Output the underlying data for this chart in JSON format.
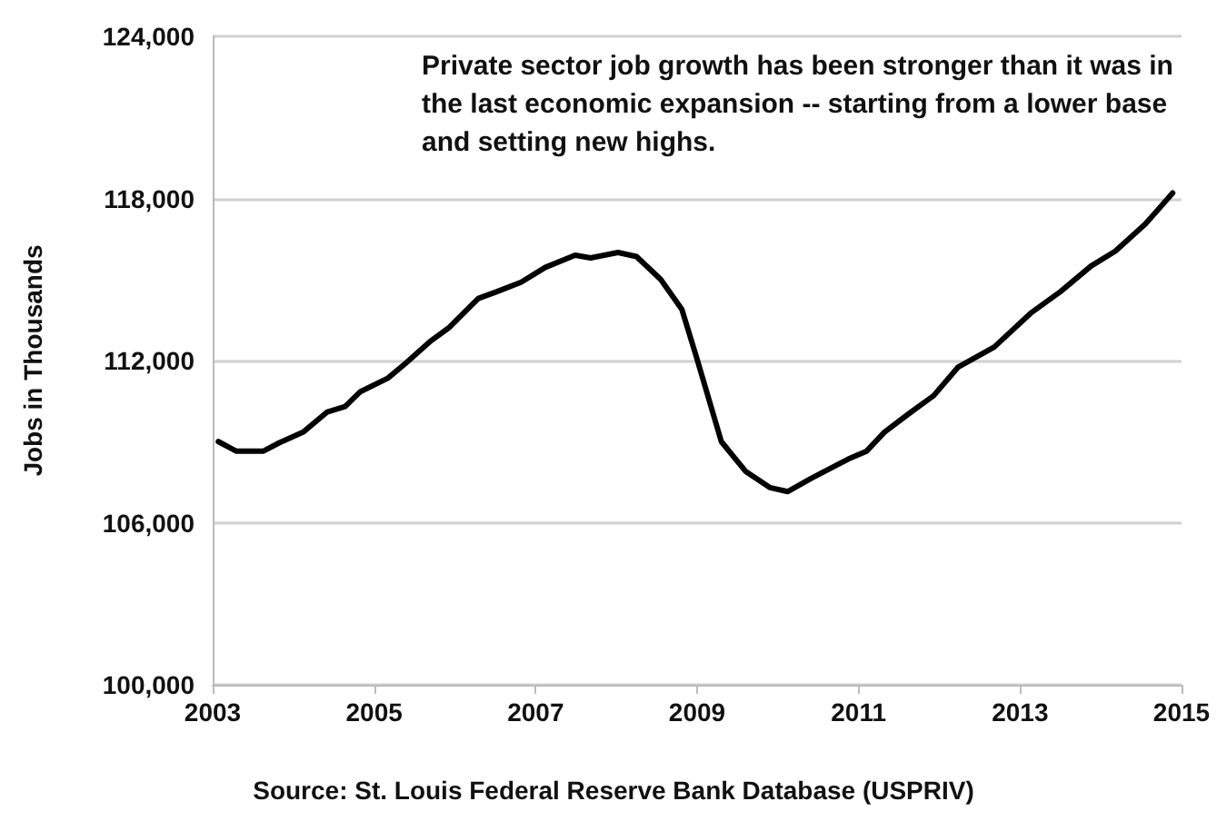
{
  "chart_data": {
    "type": "line",
    "ylabel": "Jobs in Thousands",
    "annotations": [
      "Private sector job growth has been stronger than it was in the last economic expansion -- starting from a lower base and setting new highs.",
      "Source: St. Louis Federal Reserve Bank Database (USPRIV)"
    ],
    "series": [
      {
        "color": "#000000",
        "x": [
          2003.07,
          2003.29,
          2003.63,
          2003.82,
          2004.12,
          2004.42,
          2004.64,
          2004.83,
          2005.17,
          2005.39,
          2005.69,
          2005.92,
          2006.29,
          2006.52,
          2006.82,
          2007.12,
          2007.49,
          2007.68,
          2008.02,
          2008.25,
          2008.55,
          2008.81,
          2009.0,
          2009.3,
          2009.6,
          2009.9,
          2010.12,
          2010.42,
          2010.87,
          2011.1,
          2011.32,
          2011.63,
          2011.93,
          2012.23,
          2012.68,
          2013.13,
          2013.5,
          2013.88,
          2014.18,
          2014.55,
          2014.89
        ],
        "values": [
          109000,
          108650,
          108650,
          108950,
          109350,
          110100,
          110300,
          110850,
          111350,
          111900,
          112700,
          113200,
          114300,
          114550,
          114900,
          115450,
          115900,
          115800,
          116000,
          115850,
          115000,
          113900,
          112050,
          109000,
          107900,
          107300,
          107150,
          107650,
          108350,
          108650,
          109350,
          110050,
          110700,
          111750,
          112500,
          113750,
          114550,
          115500,
          116050,
          117050,
          118200
        ]
      }
    ],
    "xlim": [
      2003,
      2015
    ],
    "xticks": [
      2003,
      2005,
      2007,
      2009,
      2011,
      2013,
      2015
    ],
    "ylim": [
      100000,
      124000
    ],
    "yticks": [
      {
        "value": 100000,
        "label": "100,000"
      },
      {
        "value": 106000,
        "label": "106,000"
      },
      {
        "value": 112000,
        "label": "112,000"
      },
      {
        "value": 118000,
        "label": "118,000"
      },
      {
        "value": 124000,
        "label": "124,000"
      }
    ],
    "grid": "y",
    "marker": "none",
    "line_style": "solid"
  }
}
